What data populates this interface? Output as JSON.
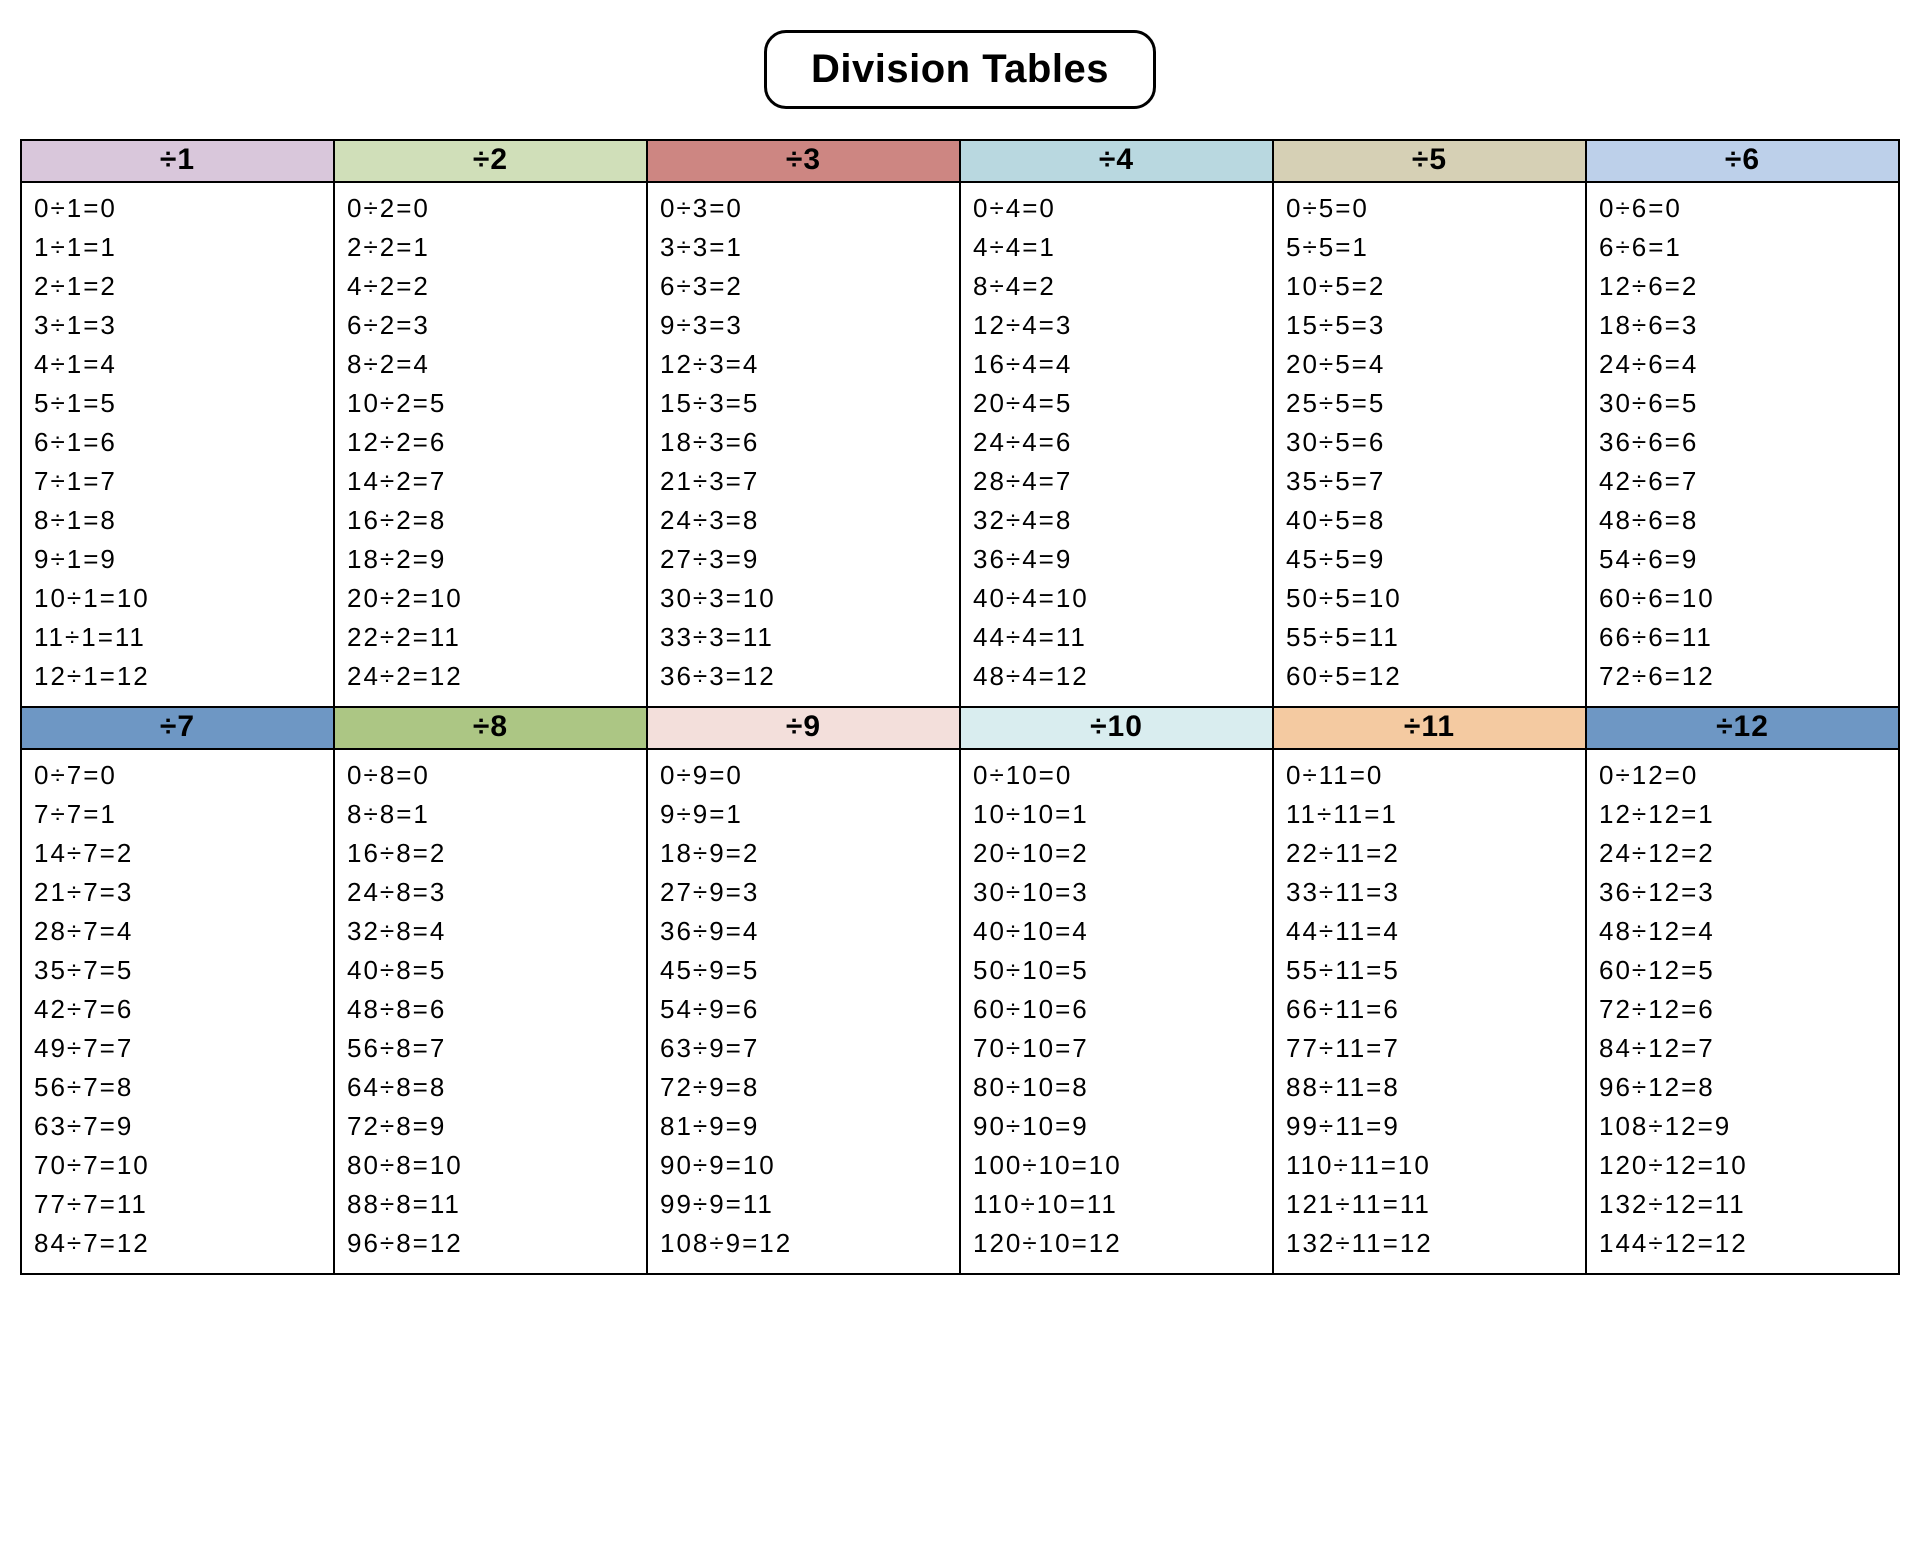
{
  "title": "Division Tables",
  "background_color": "#ffffff",
  "title_style": {
    "border_color": "#000000",
    "border_width": 3,
    "border_radius": 22,
    "font_size": 40,
    "font_weight": 800
  },
  "header_style": {
    "font_size": 30,
    "font_weight": 800,
    "border_color": "#000000"
  },
  "body_style": {
    "font_size": 26,
    "letter_spacing": 2,
    "line_height": 1.5,
    "border_color": "#000000"
  },
  "equals_sign": "=",
  "divide_sign": "÷",
  "tables": [
    {
      "label": "÷1",
      "divisor": 1,
      "header_color": "#d9c7db",
      "results": [
        0,
        1,
        2,
        3,
        4,
        5,
        6,
        7,
        8,
        9,
        10,
        11,
        12
      ]
    },
    {
      "label": "÷2",
      "divisor": 2,
      "header_color": "#d0dfb9",
      "results": [
        0,
        1,
        2,
        3,
        4,
        5,
        6,
        7,
        8,
        9,
        10,
        11,
        12
      ]
    },
    {
      "label": "÷3",
      "divisor": 3,
      "header_color": "#cd8682",
      "results": [
        0,
        1,
        2,
        3,
        4,
        5,
        6,
        7,
        8,
        9,
        10,
        11,
        12
      ]
    },
    {
      "label": "÷4",
      "divisor": 4,
      "header_color": "#b9d8e0",
      "results": [
        0,
        1,
        2,
        3,
        4,
        5,
        6,
        7,
        8,
        9,
        10,
        11,
        12
      ]
    },
    {
      "label": "÷5",
      "divisor": 5,
      "header_color": "#d6d0b5",
      "results": [
        0,
        1,
        2,
        3,
        4,
        5,
        6,
        7,
        8,
        9,
        10,
        11,
        12
      ]
    },
    {
      "label": "÷6",
      "divisor": 6,
      "header_color": "#bdd0ea",
      "results": [
        0,
        1,
        2,
        3,
        4,
        5,
        6,
        7,
        8,
        9,
        10,
        11,
        12
      ]
    },
    {
      "label": "÷7",
      "divisor": 7,
      "header_color": "#6e97c4",
      "results": [
        0,
        1,
        2,
        3,
        4,
        5,
        6,
        7,
        8,
        9,
        10,
        11,
        12
      ]
    },
    {
      "label": "÷8",
      "divisor": 8,
      "header_color": "#acc684",
      "results": [
        0,
        1,
        2,
        3,
        4,
        5,
        6,
        7,
        8,
        9,
        10,
        11,
        12
      ]
    },
    {
      "label": "÷9",
      "divisor": 9,
      "header_color": "#f3dfdb",
      "results": [
        0,
        1,
        2,
        3,
        4,
        5,
        6,
        7,
        8,
        9,
        10,
        11,
        12
      ]
    },
    {
      "label": "÷10",
      "divisor": 10,
      "header_color": "#d9edef",
      "results": [
        0,
        1,
        2,
        3,
        4,
        5,
        6,
        7,
        8,
        9,
        10,
        11,
        12
      ]
    },
    {
      "label": "÷11",
      "divisor": 11,
      "header_color": "#f4caa1",
      "results": [
        0,
        1,
        2,
        3,
        4,
        5,
        6,
        7,
        8,
        9,
        10,
        11,
        12
      ]
    },
    {
      "label": "÷12",
      "divisor": 12,
      "header_color": "#6e97c4",
      "results": [
        0,
        1,
        2,
        3,
        4,
        5,
        6,
        7,
        8,
        9,
        10,
        11,
        12
      ]
    }
  ]
}
